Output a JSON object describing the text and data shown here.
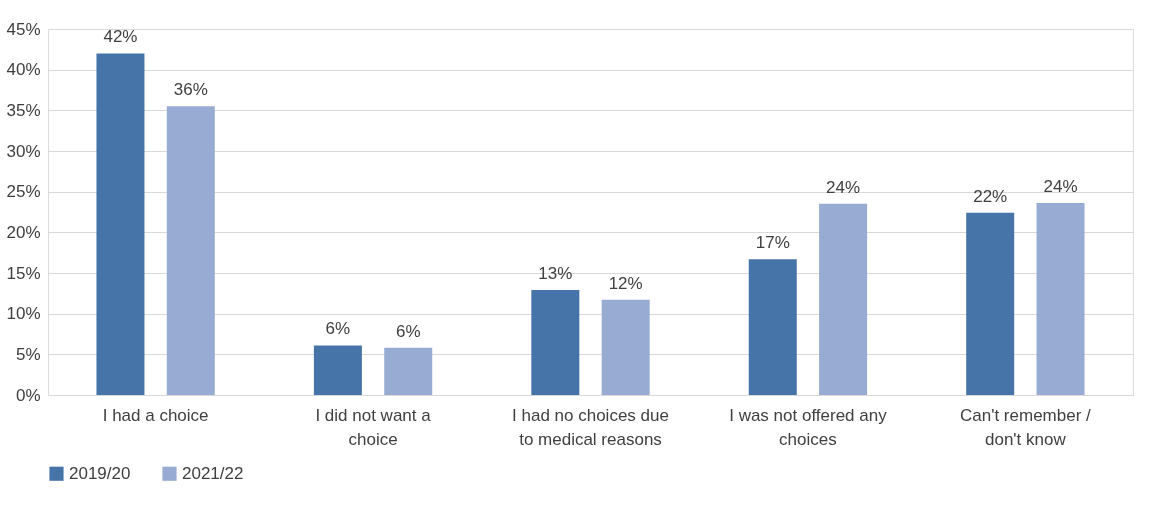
{
  "chart_data": {
    "type": "bar",
    "categories": [
      "I had a choice",
      "I did not want a choice",
      "I had no choices due to medical reasons",
      "I was not offered any choices",
      "Can't remember / don't know"
    ],
    "series": [
      {
        "name": "2019/20",
        "color": "#4674a9",
        "values": [
          42.0,
          6.1,
          12.9,
          16.7,
          22.4
        ],
        "value_labels": [
          "42%",
          "6%",
          "13%",
          "17%",
          "22%"
        ]
      },
      {
        "name": "2021/22",
        "color": "#97abd3",
        "values": [
          35.5,
          5.8,
          11.7,
          23.5,
          23.6
        ],
        "value_labels": [
          "36%",
          "6%",
          "12%",
          "24%",
          "24%"
        ]
      }
    ],
    "ylim": [
      0,
      45
    ],
    "yticks": [
      {
        "value": 0,
        "label": "0%"
      },
      {
        "value": 5,
        "label": "5%"
      },
      {
        "value": 10,
        "label": "10%"
      },
      {
        "value": 15,
        "label": "15%"
      },
      {
        "value": 20,
        "label": "20%"
      },
      {
        "value": 25,
        "label": "25%"
      },
      {
        "value": 30,
        "label": "30%"
      },
      {
        "value": 35,
        "label": "35%"
      },
      {
        "value": 40,
        "label": "40%"
      },
      {
        "value": 45,
        "label": "45%"
      }
    ],
    "grid": "y",
    "legend": "bottom"
  }
}
